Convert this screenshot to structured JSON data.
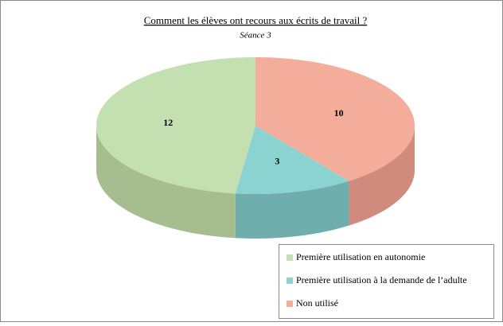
{
  "chart_data": {
    "type": "pie3d",
    "title": "Comment les élèves ont recours aux écrits de travail ?",
    "subtitle": "Séance 3",
    "categories": [
      "Première utilisation en autonomie",
      "Première utilisation à la demande de l’adulte",
      "Non utilisé"
    ],
    "values": [
      12,
      3,
      10
    ],
    "colors": [
      "#c4dfb0",
      "#8ad3d1",
      "#f5ad9b"
    ],
    "side_colors": [
      "#a5bd8f",
      "#70aeae",
      "#d08b7d"
    ]
  }
}
